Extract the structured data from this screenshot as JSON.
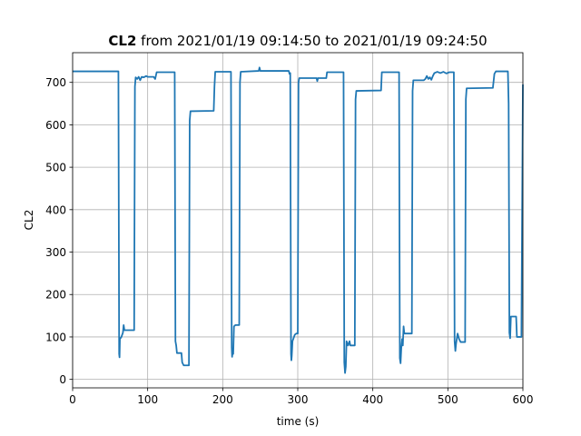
{
  "chart_data": {
    "type": "line",
    "title_bold": "CL2",
    "title_rest": " from 2021/01/19 09:14:50 to 2021/01/19 09:24:50",
    "xlabel": "time (s)",
    "ylabel": "CL2",
    "xlim": [
      0,
      600
    ],
    "ylim": [
      -20,
      770
    ],
    "xticks": [
      0,
      100,
      200,
      300,
      400,
      500,
      600
    ],
    "yticks": [
      0,
      100,
      200,
      300,
      400,
      500,
      600,
      700
    ],
    "grid": true,
    "series": [
      {
        "color": "#1f77b4",
        "points": [
          [
            0,
            726
          ],
          [
            61,
            726
          ],
          [
            62,
            60
          ],
          [
            62.5,
            52
          ],
          [
            63,
            95
          ],
          [
            65,
            100
          ],
          [
            67,
            110
          ],
          [
            68,
            128
          ],
          [
            69,
            116
          ],
          [
            82,
            116
          ],
          [
            83,
            690
          ],
          [
            84,
            712
          ],
          [
            86,
            708
          ],
          [
            88,
            713
          ],
          [
            90,
            705
          ],
          [
            92,
            713
          ],
          [
            95,
            712
          ],
          [
            98,
            715
          ],
          [
            100,
            713
          ],
          [
            108,
            713
          ],
          [
            110,
            708
          ],
          [
            112,
            724
          ],
          [
            136,
            724
          ],
          [
            137,
            90
          ],
          [
            138,
            80
          ],
          [
            139,
            62
          ],
          [
            145,
            62
          ],
          [
            146,
            40
          ],
          [
            148,
            33
          ],
          [
            155,
            33
          ],
          [
            156,
            610
          ],
          [
            157,
            632
          ],
          [
            188,
            633
          ],
          [
            189,
            690
          ],
          [
            190,
            725
          ],
          [
            211,
            725
          ],
          [
            212,
            75
          ],
          [
            212.5,
            53
          ],
          [
            213,
            62
          ],
          [
            214,
            60
          ],
          [
            215,
            125
          ],
          [
            217,
            128
          ],
          [
            222,
            128
          ],
          [
            223,
            700
          ],
          [
            224,
            725
          ],
          [
            248,
            727
          ],
          [
            249,
            735
          ],
          [
            250,
            727
          ],
          [
            288,
            727
          ],
          [
            289,
            720
          ],
          [
            290,
            722
          ],
          [
            291,
            60
          ],
          [
            291.5,
            45
          ],
          [
            292,
            55
          ],
          [
            293,
            90
          ],
          [
            296,
            105
          ],
          [
            298,
            108
          ],
          [
            300,
            108
          ],
          [
            301,
            700
          ],
          [
            302,
            710
          ],
          [
            325,
            710
          ],
          [
            326,
            703
          ],
          [
            327,
            710
          ],
          [
            338,
            710
          ],
          [
            339,
            724
          ],
          [
            361,
            724
          ],
          [
            362,
            40
          ],
          [
            363,
            15
          ],
          [
            364,
            30
          ],
          [
            365,
            90
          ],
          [
            367,
            80
          ],
          [
            369,
            90
          ],
          [
            370,
            80
          ],
          [
            376,
            80
          ],
          [
            377,
            660
          ],
          [
            378,
            680
          ],
          [
            411,
            681
          ],
          [
            412,
            724
          ],
          [
            435,
            724
          ],
          [
            436,
            50
          ],
          [
            437,
            38
          ],
          [
            438,
            75
          ],
          [
            439,
            95
          ],
          [
            440,
            80
          ],
          [
            441,
            125
          ],
          [
            442,
            108
          ],
          [
            452,
            108
          ],
          [
            453,
            680
          ],
          [
            454,
            705
          ],
          [
            468,
            705
          ],
          [
            470,
            708
          ],
          [
            472,
            715
          ],
          [
            474,
            708
          ],
          [
            476,
            712
          ],
          [
            478,
            706
          ],
          [
            480,
            715
          ],
          [
            482,
            722
          ],
          [
            486,
            725
          ],
          [
            490,
            722
          ],
          [
            494,
            725
          ],
          [
            498,
            721
          ],
          [
            502,
            724
          ],
          [
            508,
            724
          ],
          [
            509,
            90
          ],
          [
            510,
            67
          ],
          [
            511,
            85
          ],
          [
            513,
            108
          ],
          [
            515,
            95
          ],
          [
            517,
            88
          ],
          [
            523,
            88
          ],
          [
            524,
            660
          ],
          [
            525,
            686
          ],
          [
            560,
            687
          ],
          [
            562,
            720
          ],
          [
            564,
            726
          ],
          [
            580,
            726
          ],
          [
            581,
            650
          ],
          [
            582,
            110
          ],
          [
            583,
            97
          ],
          [
            584,
            148
          ],
          [
            591,
            148
          ],
          [
            592,
            100
          ],
          [
            598,
            100
          ],
          [
            600,
            695
          ]
        ]
      }
    ]
  }
}
